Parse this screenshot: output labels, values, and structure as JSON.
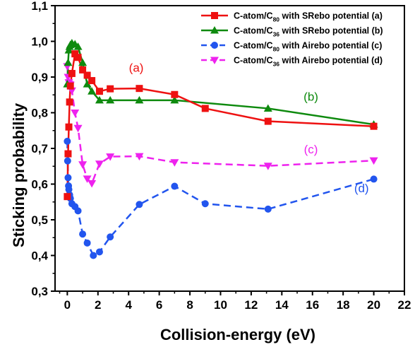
{
  "chart_data": {
    "type": "line",
    "xlabel": "Collision-energy (eV)",
    "ylabel": "Sticking probability",
    "xlim": [
      -0.8,
      22
    ],
    "ylim": [
      0.3,
      1.1
    ],
    "xticks": [
      0,
      2,
      4,
      6,
      8,
      10,
      12,
      14,
      16,
      18,
      20,
      22
    ],
    "yticks": [
      0.3,
      0.4,
      0.5,
      0.6,
      0.7,
      0.8,
      0.9,
      1.0,
      1.1
    ],
    "xtick_labels": [
      "0",
      "2",
      "4",
      "6",
      "8",
      "10",
      "12",
      "14",
      "16",
      "18",
      "20",
      "22"
    ],
    "ytick_labels": [
      "0,3",
      "0,4",
      "0,5",
      "0,6",
      "0,7",
      "0,8",
      "0,9",
      "1,0",
      "1,1"
    ],
    "grid": false,
    "legend_position": "top-right",
    "series": [
      {
        "name": "C-atom/C80 with SRebo potential (a)",
        "legend": {
          "pre": "C-atom/C",
          "sub": "80",
          "post": " with SRebo potential (a)"
        },
        "color": "#ee1111",
        "marker": "square",
        "dash": "solid",
        "x": [
          0.0,
          0.05,
          0.1,
          0.15,
          0.2,
          0.3,
          0.5,
          0.7,
          1.0,
          1.3,
          1.6,
          2.1,
          2.8,
          4.7,
          7.0,
          9.0,
          13.1,
          20.0
        ],
        "y": [
          0.565,
          0.685,
          0.76,
          0.83,
          0.875,
          0.91,
          0.965,
          0.955,
          0.92,
          0.905,
          0.89,
          0.86,
          0.867,
          0.868,
          0.851,
          0.812,
          0.776,
          0.762
        ]
      },
      {
        "name": "C-atom/C36 with SRebo potential (b)",
        "legend": {
          "pre": "C-atom/C",
          "sub": "36",
          "post": " with SRebo potential (b)"
        },
        "color": "#0e8a0e",
        "marker": "triangle-up",
        "dash": "solid",
        "x": [
          0.0,
          0.05,
          0.1,
          0.15,
          0.2,
          0.3,
          0.5,
          0.7,
          1.0,
          1.3,
          1.6,
          2.1,
          2.8,
          4.7,
          7.0,
          13.1,
          20.0
        ],
        "y": [
          0.88,
          0.94,
          0.975,
          0.985,
          0.99,
          0.995,
          0.992,
          0.985,
          0.94,
          0.88,
          0.86,
          0.835,
          0.835,
          0.835,
          0.835,
          0.812,
          0.767
        ]
      },
      {
        "name": "C-atom/C80 with Airebo potential (c)",
        "legend": {
          "pre": "C-atom/C",
          "sub": "80",
          "post": " with Airebo potential (c)"
        },
        "color": "#2255ee",
        "marker": "circle",
        "dash": "dash",
        "x": [
          0.0,
          0.02,
          0.05,
          0.08,
          0.1,
          0.15,
          0.2,
          0.3,
          0.5,
          0.7,
          1.0,
          1.3,
          1.7,
          2.1,
          2.8,
          4.7,
          7.0,
          9.0,
          13.1,
          20.0
        ],
        "y": [
          0.72,
          0.665,
          0.618,
          0.595,
          0.585,
          0.57,
          0.56,
          0.545,
          0.537,
          0.525,
          0.46,
          0.435,
          0.4,
          0.41,
          0.452,
          0.543,
          0.594,
          0.545,
          0.53,
          0.614
        ]
      },
      {
        "name": "C-atom/C36 with Airebo potential (d)",
        "legend": {
          "pre": "C-atom/C",
          "sub": "36",
          "post": " with Airebo potential (d)"
        },
        "color": "#ee22ee",
        "marker": "triangle-down",
        "dash": "dash",
        "x": [
          0.0,
          0.05,
          0.1,
          0.15,
          0.2,
          0.3,
          0.5,
          0.7,
          1.0,
          1.3,
          1.6,
          2.1,
          2.8,
          4.7,
          7.0,
          13.1,
          20.0
        ],
        "y": [
          0.93,
          0.9,
          0.885,
          0.88,
          0.878,
          0.862,
          0.8,
          0.757,
          0.655,
          0.615,
          0.602,
          0.657,
          0.677,
          0.678,
          0.661,
          0.651,
          0.666
        ]
      }
    ],
    "annotations": [
      {
        "text": "(a)",
        "x": 4.5,
        "y": 0.915,
        "color": "#ee1111"
      },
      {
        "text": "(b)",
        "x": 15.9,
        "y": 0.834,
        "color": "#0e8a0e"
      },
      {
        "text": "(c)",
        "x": 15.9,
        "y": 0.686,
        "color": "#ee22ee"
      },
      {
        "text": "(d)",
        "x": 19.2,
        "y": 0.577,
        "color": "#2255ee"
      }
    ]
  }
}
